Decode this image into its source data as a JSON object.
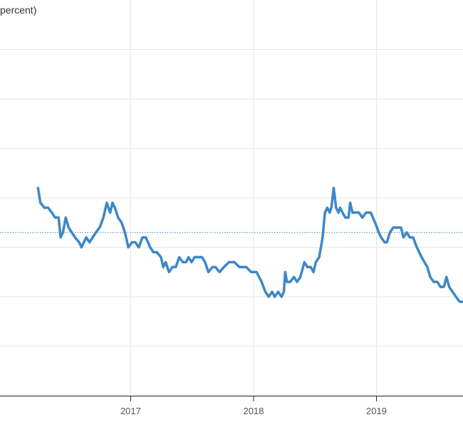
{
  "chart_data": {
    "type": "line",
    "title": "percent)",
    "xlabel": "",
    "ylabel": "",
    "x_ticks": [
      {
        "label": "2017",
        "date": "2017-01-01"
      },
      {
        "label": "2018",
        "date": "2018-01-01"
      },
      {
        "label": "2019",
        "date": "2019-01-01"
      }
    ],
    "xlim": [
      "2015-12-10",
      "2019-09-15"
    ],
    "ylim": [
      0,
      8
    ],
    "y_gridlines": [
      1,
      2,
      3,
      4,
      5,
      6,
      7
    ],
    "reference_line": 3.3,
    "grid": true,
    "legend": "none",
    "series": [
      {
        "color": "#3d87c7",
        "points": [
          [
            "2016-04-01",
            4.2
          ],
          [
            "2016-04-08",
            3.9
          ],
          [
            "2016-04-20",
            3.8
          ],
          [
            "2016-05-01",
            3.8
          ],
          [
            "2016-05-12",
            3.7
          ],
          [
            "2016-05-22",
            3.6
          ],
          [
            "2016-06-01",
            3.6
          ],
          [
            "2016-06-07",
            3.2
          ],
          [
            "2016-06-14",
            3.3
          ],
          [
            "2016-06-22",
            3.6
          ],
          [
            "2016-07-01",
            3.4
          ],
          [
            "2016-07-10",
            3.3
          ],
          [
            "2016-07-20",
            3.2
          ],
          [
            "2016-08-01",
            3.1
          ],
          [
            "2016-08-08",
            3.0
          ],
          [
            "2016-08-15",
            3.1
          ],
          [
            "2016-08-22",
            3.2
          ],
          [
            "2016-09-01",
            3.1
          ],
          [
            "2016-09-10",
            3.2
          ],
          [
            "2016-09-20",
            3.3
          ],
          [
            "2016-10-01",
            3.4
          ],
          [
            "2016-10-12",
            3.6
          ],
          [
            "2016-10-22",
            3.9
          ],
          [
            "2016-11-01",
            3.7
          ],
          [
            "2016-11-08",
            3.9
          ],
          [
            "2016-11-15",
            3.8
          ],
          [
            "2016-11-25",
            3.6
          ],
          [
            "2016-12-05",
            3.5
          ],
          [
            "2016-12-15",
            3.3
          ],
          [
            "2016-12-25",
            3.0
          ],
          [
            "2017-01-05",
            3.1
          ],
          [
            "2017-01-15",
            3.1
          ],
          [
            "2017-01-25",
            3.0
          ],
          [
            "2017-02-05",
            3.2
          ],
          [
            "2017-02-15",
            3.2
          ],
          [
            "2017-02-28",
            3.0
          ],
          [
            "2017-03-10",
            2.9
          ],
          [
            "2017-03-20",
            2.9
          ],
          [
            "2017-04-01",
            2.8
          ],
          [
            "2017-04-08",
            2.6
          ],
          [
            "2017-04-15",
            2.7
          ],
          [
            "2017-04-25",
            2.5
          ],
          [
            "2017-05-05",
            2.6
          ],
          [
            "2017-05-15",
            2.6
          ],
          [
            "2017-05-25",
            2.8
          ],
          [
            "2017-06-05",
            2.7
          ],
          [
            "2017-06-15",
            2.7
          ],
          [
            "2017-06-22",
            2.8
          ],
          [
            "2017-07-01",
            2.7
          ],
          [
            "2017-07-10",
            2.8
          ],
          [
            "2017-07-20",
            2.8
          ],
          [
            "2017-08-01",
            2.8
          ],
          [
            "2017-08-10",
            2.7
          ],
          [
            "2017-08-20",
            2.5
          ],
          [
            "2017-09-01",
            2.6
          ],
          [
            "2017-09-10",
            2.6
          ],
          [
            "2017-09-22",
            2.5
          ],
          [
            "2017-10-05",
            2.6
          ],
          [
            "2017-10-20",
            2.7
          ],
          [
            "2017-11-05",
            2.7
          ],
          [
            "2017-11-20",
            2.6
          ],
          [
            "2017-12-10",
            2.6
          ],
          [
            "2017-12-25",
            2.5
          ],
          [
            "2018-01-10",
            2.5
          ],
          [
            "2018-01-25",
            2.3
          ],
          [
            "2018-02-05",
            2.1
          ],
          [
            "2018-02-15",
            2.0
          ],
          [
            "2018-02-25",
            2.1
          ],
          [
            "2018-03-05",
            2.0
          ],
          [
            "2018-03-15",
            2.1
          ],
          [
            "2018-03-25",
            2.0
          ],
          [
            "2018-04-01",
            2.1
          ],
          [
            "2018-04-05",
            2.5
          ],
          [
            "2018-04-10",
            2.3
          ],
          [
            "2018-04-20",
            2.3
          ],
          [
            "2018-05-01",
            2.4
          ],
          [
            "2018-05-10",
            2.3
          ],
          [
            "2018-05-20",
            2.4
          ],
          [
            "2018-06-01",
            2.7
          ],
          [
            "2018-06-10",
            2.6
          ],
          [
            "2018-06-20",
            2.6
          ],
          [
            "2018-06-28",
            2.5
          ],
          [
            "2018-07-05",
            2.7
          ],
          [
            "2018-07-15",
            2.8
          ],
          [
            "2018-07-25",
            3.2
          ],
          [
            "2018-08-01",
            3.7
          ],
          [
            "2018-08-08",
            3.8
          ],
          [
            "2018-08-15",
            3.7
          ],
          [
            "2018-08-20",
            3.8
          ],
          [
            "2018-08-27",
            4.2
          ],
          [
            "2018-09-03",
            3.8
          ],
          [
            "2018-09-10",
            3.7
          ],
          [
            "2018-09-15",
            3.8
          ],
          [
            "2018-09-22",
            3.7
          ],
          [
            "2018-10-01",
            3.6
          ],
          [
            "2018-10-10",
            3.6
          ],
          [
            "2018-10-15",
            3.9
          ],
          [
            "2018-10-22",
            3.7
          ],
          [
            "2018-11-01",
            3.7
          ],
          [
            "2018-11-10",
            3.7
          ],
          [
            "2018-11-20",
            3.6
          ],
          [
            "2018-12-01",
            3.7
          ],
          [
            "2018-12-15",
            3.7
          ],
          [
            "2018-12-28",
            3.5
          ],
          [
            "2019-01-08",
            3.3
          ],
          [
            "2019-01-15",
            3.2
          ],
          [
            "2019-01-25",
            3.1
          ],
          [
            "2019-02-01",
            3.1
          ],
          [
            "2019-02-10",
            3.3
          ],
          [
            "2019-02-20",
            3.4
          ],
          [
            "2019-03-01",
            3.4
          ],
          [
            "2019-03-15",
            3.4
          ],
          [
            "2019-03-22",
            3.2
          ],
          [
            "2019-04-01",
            3.3
          ],
          [
            "2019-04-10",
            3.2
          ],
          [
            "2019-04-20",
            3.2
          ],
          [
            "2019-05-01",
            3.0
          ],
          [
            "2019-05-15",
            2.8
          ],
          [
            "2019-06-01",
            2.6
          ],
          [
            "2019-06-10",
            2.4
          ],
          [
            "2019-06-20",
            2.3
          ],
          [
            "2019-07-01",
            2.3
          ],
          [
            "2019-07-10",
            2.2
          ],
          [
            "2019-07-20",
            2.2
          ],
          [
            "2019-07-28",
            2.4
          ],
          [
            "2019-08-05",
            2.2
          ],
          [
            "2019-08-15",
            2.1
          ],
          [
            "2019-08-25",
            2.0
          ],
          [
            "2019-09-05",
            1.9
          ],
          [
            "2019-09-15",
            1.9
          ]
        ]
      }
    ]
  }
}
